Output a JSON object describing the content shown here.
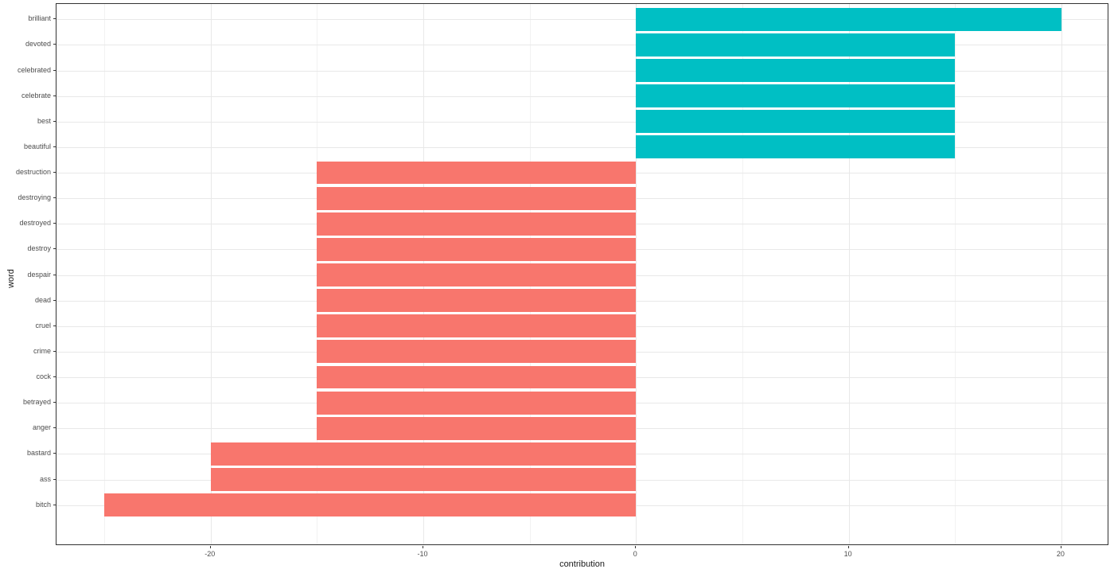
{
  "chart_data": {
    "type": "bar",
    "orientation": "horizontal",
    "title": "",
    "xlabel": "contribution",
    "ylabel": "word",
    "legend": "none",
    "grid": true,
    "categories": [
      "brilliant",
      "devoted",
      "celebrated",
      "celebrate",
      "best",
      "beautiful",
      "destruction",
      "destroying",
      "destroyed",
      "destroy",
      "despair",
      "dead",
      "cruel",
      "crime",
      "cock",
      "betrayed",
      "anger",
      "bastard",
      "ass",
      "bitch"
    ],
    "values": [
      20,
      15,
      15,
      15,
      15,
      15,
      -15,
      -15,
      -15,
      -15,
      -15,
      -15,
      -15,
      -15,
      -15,
      -15,
      -15,
      -20,
      -20,
      -25
    ],
    "positive_color": "#00BFC4",
    "negative_color": "#F8766D",
    "xlim": [
      -27.25,
      22.25
    ],
    "x_major_ticks": [
      -20,
      -10,
      0,
      10,
      20
    ],
    "x_major_tick_labels": [
      "-20",
      "-10",
      "0",
      "10",
      "20"
    ],
    "x_minor_gridlines": [
      -25,
      -15,
      -5,
      5,
      15
    ],
    "panel_border_color": "#333333",
    "major_grid_color": "#e8e8e8",
    "minor_grid_color": "#f2f2f2",
    "tick_label_color": "#4d4d4d",
    "axis_title_color": "#1a1a1a"
  }
}
